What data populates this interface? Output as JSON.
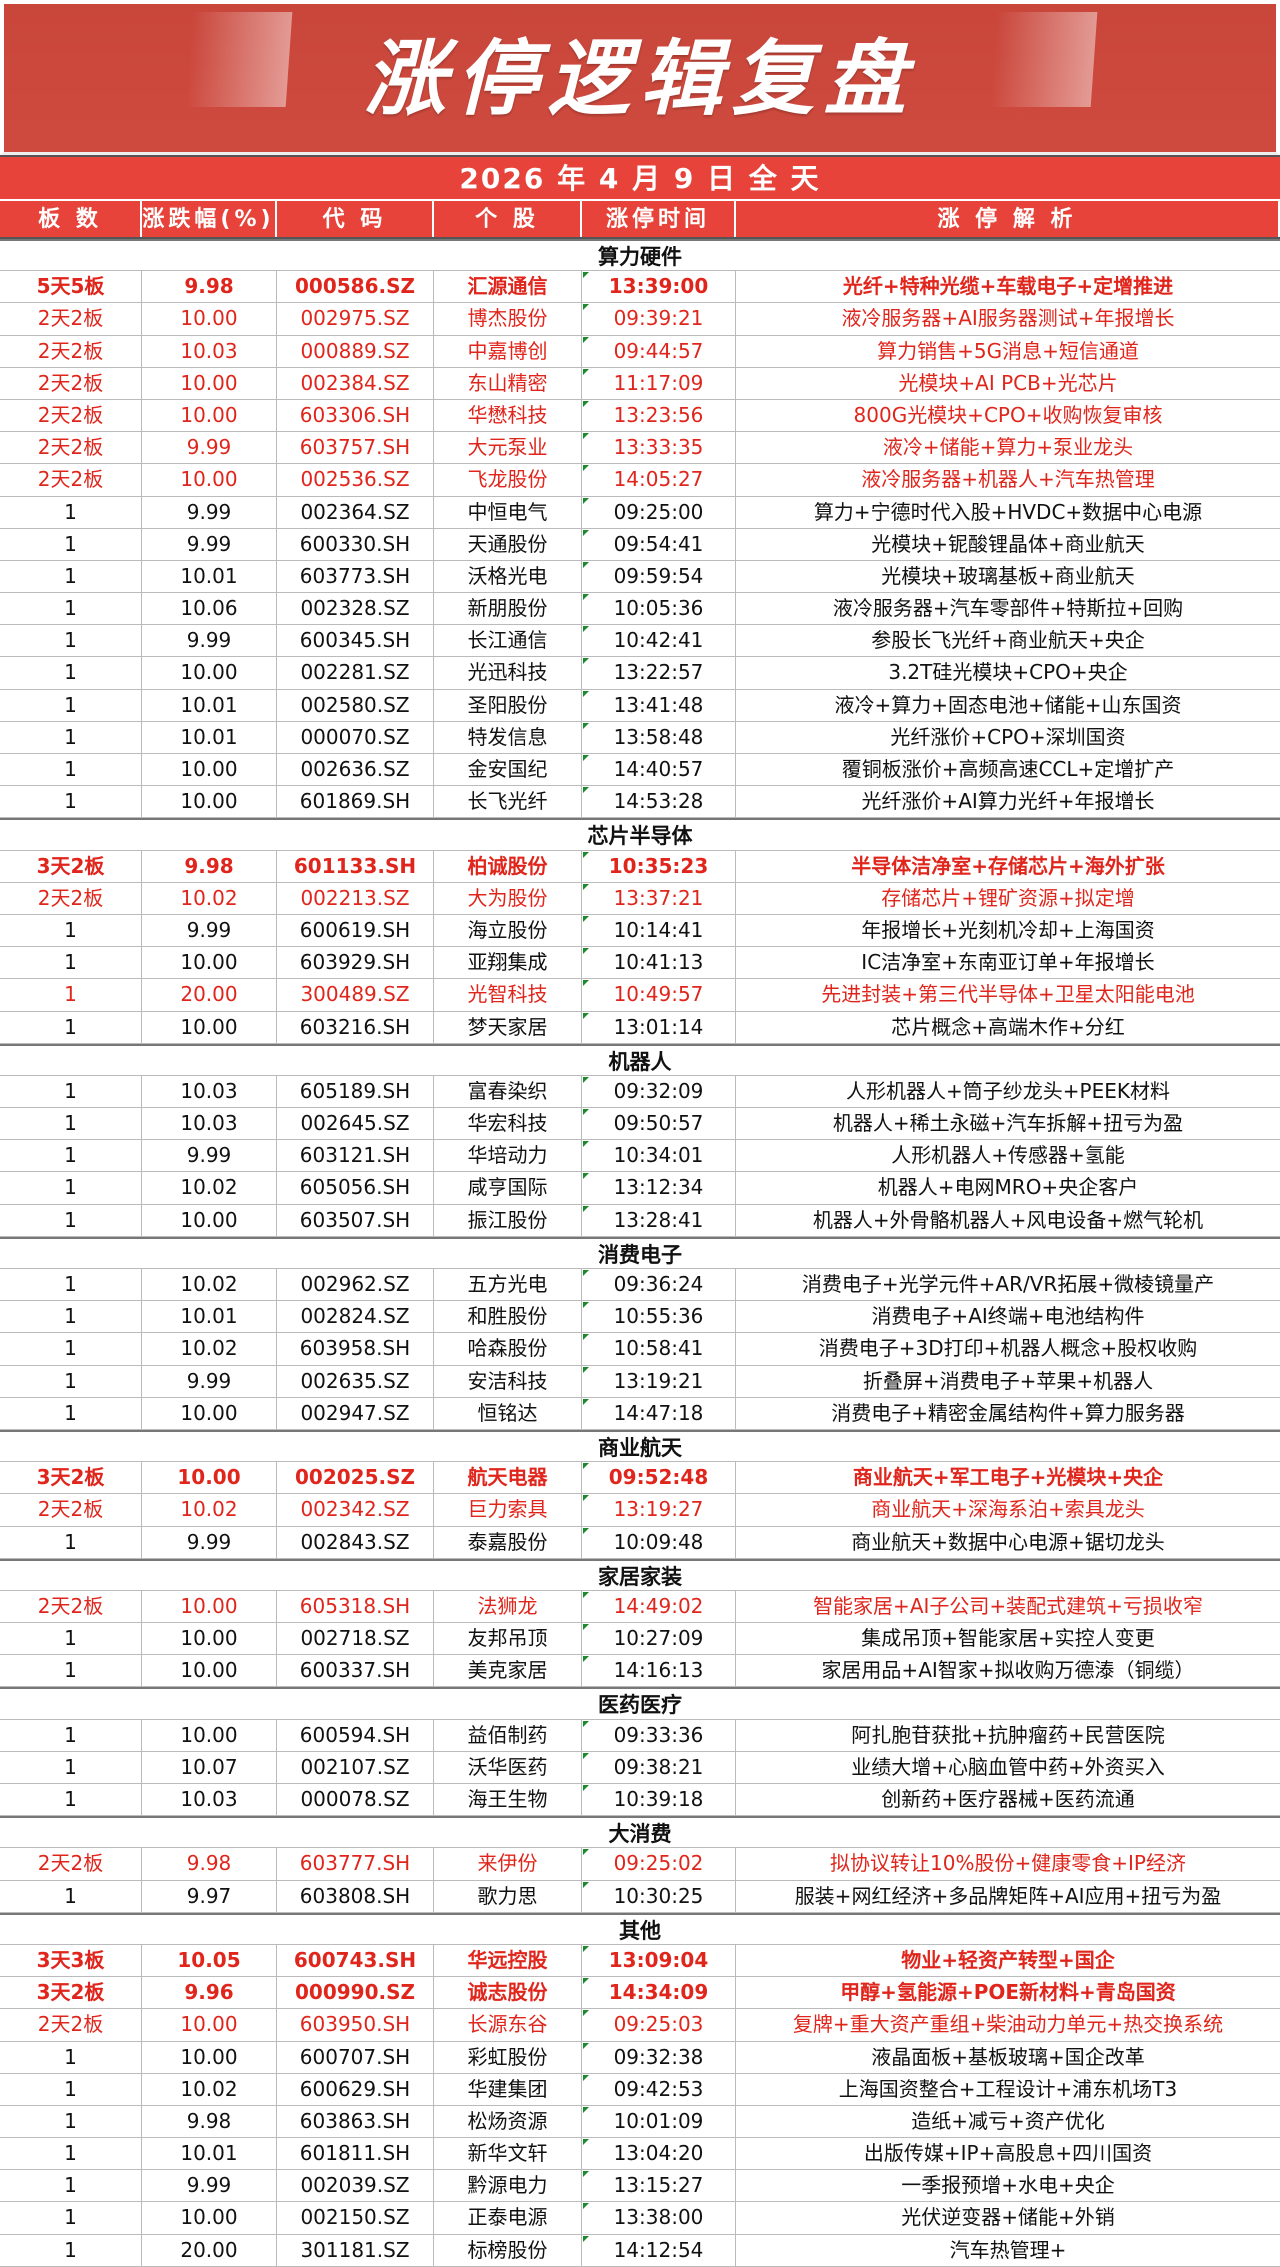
{
  "title": "涨停逻辑复盘",
  "date": "2026 年 4 月 9 日 全 天",
  "headers": [
    "板 数",
    "涨跌幅(%)",
    "代 码",
    "个 股",
    "涨停时间",
    "涨 停 解 析"
  ],
  "colors": {
    "accent": "#e8433a",
    "highlight_text": "#e0261c",
    "banner": "#cf4a3e"
  },
  "sections": [
    {
      "name": "算力硬件",
      "rows": [
        {
          "b": "5天5板",
          "p": "9.98",
          "c": "000586.SZ",
          "n": "汇源通信",
          "t": "13:39:00",
          "r": "光纤+特种光缆+车载电子+定增推进",
          "s": "bold"
        },
        {
          "b": "2天2板",
          "p": "10.00",
          "c": "002975.SZ",
          "n": "博杰股份",
          "t": "09:39:21",
          "r": "液冷服务器+AI服务器测试+年报增长",
          "s": "red"
        },
        {
          "b": "2天2板",
          "p": "10.03",
          "c": "000889.SZ",
          "n": "中嘉博创",
          "t": "09:44:57",
          "r": "算力销售+5G消息+短信通道",
          "s": "red"
        },
        {
          "b": "2天2板",
          "p": "10.00",
          "c": "002384.SZ",
          "n": "东山精密",
          "t": "11:17:09",
          "r": "光模块+AI PCB+光芯片",
          "s": "red"
        },
        {
          "b": "2天2板",
          "p": "10.00",
          "c": "603306.SH",
          "n": "华懋科技",
          "t": "13:23:56",
          "r": "800G光模块+CPO+收购恢复审核",
          "s": "red"
        },
        {
          "b": "2天2板",
          "p": "9.99",
          "c": "603757.SH",
          "n": "大元泵业",
          "t": "13:33:35",
          "r": "液冷+储能+算力+泵业龙头",
          "s": "red"
        },
        {
          "b": "2天2板",
          "p": "10.00",
          "c": "002536.SZ",
          "n": "飞龙股份",
          "t": "14:05:27",
          "r": "液冷服务器+机器人+汽车热管理",
          "s": "red"
        },
        {
          "b": "1",
          "p": "9.99",
          "c": "002364.SZ",
          "n": "中恒电气",
          "t": "09:25:00",
          "r": "算力+宁德时代入股+HVDC+数据中心电源",
          "s": ""
        },
        {
          "b": "1",
          "p": "9.99",
          "c": "600330.SH",
          "n": "天通股份",
          "t": "09:54:41",
          "r": "光模块+铌酸锂晶体+商业航天",
          "s": ""
        },
        {
          "b": "1",
          "p": "10.01",
          "c": "603773.SH",
          "n": "沃格光电",
          "t": "09:59:54",
          "r": "光模块+玻璃基板+商业航天",
          "s": ""
        },
        {
          "b": "1",
          "p": "10.06",
          "c": "002328.SZ",
          "n": "新朋股份",
          "t": "10:05:36",
          "r": "液冷服务器+汽车零部件+特斯拉+回购",
          "s": ""
        },
        {
          "b": "1",
          "p": "9.99",
          "c": "600345.SH",
          "n": "长江通信",
          "t": "10:42:41",
          "r": "参股长飞光纤+商业航天+央企",
          "s": ""
        },
        {
          "b": "1",
          "p": "10.00",
          "c": "002281.SZ",
          "n": "光迅科技",
          "t": "13:22:57",
          "r": "3.2T硅光模块+CPO+央企",
          "s": ""
        },
        {
          "b": "1",
          "p": "10.01",
          "c": "002580.SZ",
          "n": "圣阳股份",
          "t": "13:41:48",
          "r": "液冷+算力+固态电池+储能+山东国资",
          "s": ""
        },
        {
          "b": "1",
          "p": "10.01",
          "c": "000070.SZ",
          "n": "特发信息",
          "t": "13:58:48",
          "r": "光纤涨价+CPO+深圳国资",
          "s": ""
        },
        {
          "b": "1",
          "p": "10.00",
          "c": "002636.SZ",
          "n": "金安国纪",
          "t": "14:40:57",
          "r": "覆铜板涨价+高频高速CCL+定增扩产",
          "s": ""
        },
        {
          "b": "1",
          "p": "10.00",
          "c": "601869.SH",
          "n": "长飞光纤",
          "t": "14:53:28",
          "r": "光纤涨价+AI算力光纤+年报增长",
          "s": ""
        }
      ]
    },
    {
      "name": "芯片半导体",
      "rows": [
        {
          "b": "3天2板",
          "p": "9.98",
          "c": "601133.SH",
          "n": "柏诚股份",
          "t": "10:35:23",
          "r": "半导体洁净室+存储芯片+海外扩张",
          "s": "bold"
        },
        {
          "b": "2天2板",
          "p": "10.02",
          "c": "002213.SZ",
          "n": "大为股份",
          "t": "13:37:21",
          "r": "存储芯片+锂矿资源+拟定增",
          "s": "red"
        },
        {
          "b": "1",
          "p": "9.99",
          "c": "600619.SH",
          "n": "海立股份",
          "t": "10:14:41",
          "r": "年报增长+光刻机冷却+上海国资",
          "s": ""
        },
        {
          "b": "1",
          "p": "10.00",
          "c": "603929.SH",
          "n": "亚翔集成",
          "t": "10:41:13",
          "r": "IC洁净室+东南亚订单+年报增长",
          "s": ""
        },
        {
          "b": "1",
          "p": "20.00",
          "c": "300489.SZ",
          "n": "光智科技",
          "t": "10:49:57",
          "r": "先进封装+第三代半导体+卫星太阳能电池",
          "s": "red"
        },
        {
          "b": "1",
          "p": "10.00",
          "c": "603216.SH",
          "n": "梦天家居",
          "t": "13:01:14",
          "r": "芯片概念+高端木作+分红",
          "s": ""
        }
      ]
    },
    {
      "name": "机器人",
      "rows": [
        {
          "b": "1",
          "p": "10.03",
          "c": "605189.SH",
          "n": "富春染织",
          "t": "09:32:09",
          "r": "人形机器人+筒子纱龙头+PEEK材料",
          "s": ""
        },
        {
          "b": "1",
          "p": "10.03",
          "c": "002645.SZ",
          "n": "华宏科技",
          "t": "09:50:57",
          "r": "机器人+稀土永磁+汽车拆解+扭亏为盈",
          "s": ""
        },
        {
          "b": "1",
          "p": "9.99",
          "c": "603121.SH",
          "n": "华培动力",
          "t": "10:34:01",
          "r": "人形机器人+传感器+氢能",
          "s": ""
        },
        {
          "b": "1",
          "p": "10.02",
          "c": "605056.SH",
          "n": "咸亨国际",
          "t": "13:12:34",
          "r": "机器人+电网MRO+央企客户",
          "s": ""
        },
        {
          "b": "1",
          "p": "10.00",
          "c": "603507.SH",
          "n": "振江股份",
          "t": "13:28:41",
          "r": "机器人+外骨骼机器人+风电设备+燃气轮机",
          "s": ""
        }
      ]
    },
    {
      "name": "消费电子",
      "rows": [
        {
          "b": "1",
          "p": "10.02",
          "c": "002962.SZ",
          "n": "五方光电",
          "t": "09:36:24",
          "r": "消费电子+光学元件+AR/VR拓展+微棱镜量产",
          "s": ""
        },
        {
          "b": "1",
          "p": "10.01",
          "c": "002824.SZ",
          "n": "和胜股份",
          "t": "10:55:36",
          "r": "消费电子+AI终端+电池结构件",
          "s": ""
        },
        {
          "b": "1",
          "p": "10.02",
          "c": "603958.SH",
          "n": "哈森股份",
          "t": "10:58:41",
          "r": "消费电子+3D打印+机器人概念+股权收购",
          "s": ""
        },
        {
          "b": "1",
          "p": "9.99",
          "c": "002635.SZ",
          "n": "安洁科技",
          "t": "13:19:21",
          "r": "折叠屏+消费电子+苹果+机器人",
          "s": ""
        },
        {
          "b": "1",
          "p": "10.00",
          "c": "002947.SZ",
          "n": "恒铭达",
          "t": "14:47:18",
          "r": "消费电子+精密金属结构件+算力服务器",
          "s": ""
        }
      ]
    },
    {
      "name": "商业航天",
      "rows": [
        {
          "b": "3天2板",
          "p": "10.00",
          "c": "002025.SZ",
          "n": "航天电器",
          "t": "09:52:48",
          "r": "商业航天+军工电子+光模块+央企",
          "s": "bold"
        },
        {
          "b": "2天2板",
          "p": "10.02",
          "c": "002342.SZ",
          "n": "巨力索具",
          "t": "13:19:27",
          "r": "商业航天+深海系泊+索具龙头",
          "s": "red"
        },
        {
          "b": "1",
          "p": "9.99",
          "c": "002843.SZ",
          "n": "泰嘉股份",
          "t": "10:09:48",
          "r": "商业航天+数据中心电源+锯切龙头",
          "s": ""
        }
      ]
    },
    {
      "name": "家居家装",
      "rows": [
        {
          "b": "2天2板",
          "p": "10.00",
          "c": "605318.SH",
          "n": "法狮龙",
          "t": "14:49:02",
          "r": "智能家居+AI子公司+装配式建筑+亏损收窄",
          "s": "red"
        },
        {
          "b": "1",
          "p": "10.00",
          "c": "002718.SZ",
          "n": "友邦吊顶",
          "t": "10:27:09",
          "r": "集成吊顶+智能家居+实控人变更",
          "s": ""
        },
        {
          "b": "1",
          "p": "10.00",
          "c": "600337.SH",
          "n": "美克家居",
          "t": "14:16:13",
          "r": "家居用品+AI智家+拟收购万德溙（铜缆）",
          "s": ""
        }
      ]
    },
    {
      "name": "医药医疗",
      "rows": [
        {
          "b": "1",
          "p": "10.00",
          "c": "600594.SH",
          "n": "益佰制药",
          "t": "09:33:36",
          "r": "阿扎胞苷获批+抗肿瘤药+民营医院",
          "s": ""
        },
        {
          "b": "1",
          "p": "10.07",
          "c": "002107.SZ",
          "n": "沃华医药",
          "t": "09:38:21",
          "r": "业绩大增+心脑血管中药+外资买入",
          "s": ""
        },
        {
          "b": "1",
          "p": "10.03",
          "c": "000078.SZ",
          "n": "海王生物",
          "t": "10:39:18",
          "r": "创新药+医疗器械+医药流通",
          "s": ""
        }
      ]
    },
    {
      "name": "大消费",
      "rows": [
        {
          "b": "2天2板",
          "p": "9.98",
          "c": "603777.SH",
          "n": "来伊份",
          "t": "09:25:02",
          "r": "拟协议转让10%股份+健康零食+IP经济",
          "s": "red"
        },
        {
          "b": "1",
          "p": "9.97",
          "c": "603808.SH",
          "n": "歌力思",
          "t": "10:30:25",
          "r": "服装+网红经济+多品牌矩阵+AI应用+扭亏为盈",
          "s": ""
        }
      ]
    },
    {
      "name": "其他",
      "rows": [
        {
          "b": "3天3板",
          "p": "10.05",
          "c": "600743.SH",
          "n": "华远控股",
          "t": "13:09:04",
          "r": "物业+轻资产转型+国企",
          "s": "bold"
        },
        {
          "b": "3天2板",
          "p": "9.96",
          "c": "000990.SZ",
          "n": "诚志股份",
          "t": "14:34:09",
          "r": "甲醇+氢能源+POE新材料+青岛国资",
          "s": "bold"
        },
        {
          "b": "2天2板",
          "p": "10.00",
          "c": "603950.SH",
          "n": "长源东谷",
          "t": "09:25:03",
          "r": "复牌+重大资产重组+柴油动力单元+热交换系统",
          "s": "red"
        },
        {
          "b": "1",
          "p": "10.00",
          "c": "600707.SH",
          "n": "彩虹股份",
          "t": "09:32:38",
          "r": "液晶面板+基板玻璃+国企改革",
          "s": ""
        },
        {
          "b": "1",
          "p": "10.02",
          "c": "600629.SH",
          "n": "华建集团",
          "t": "09:42:53",
          "r": "上海国资整合+工程设计+浦东机场T3",
          "s": ""
        },
        {
          "b": "1",
          "p": "9.98",
          "c": "603863.SH",
          "n": "松炀资源",
          "t": "10:01:09",
          "r": "造纸+减亏+资产优化",
          "s": ""
        },
        {
          "b": "1",
          "p": "10.01",
          "c": "601811.SH",
          "n": "新华文轩",
          "t": "13:04:20",
          "r": "出版传媒+IP+高股息+四川国资",
          "s": ""
        },
        {
          "b": "1",
          "p": "9.99",
          "c": "002039.SZ",
          "n": "黔源电力",
          "t": "13:15:27",
          "r": "一季报预增+水电+央企",
          "s": ""
        },
        {
          "b": "1",
          "p": "10.00",
          "c": "002150.SZ",
          "n": "正泰电源",
          "t": "13:38:00",
          "r": "光伏逆变器+储能+外销",
          "s": ""
        },
        {
          "b": "1",
          "p": "20.00",
          "c": "301181.SZ",
          "n": "标榜股份",
          "t": "14:12:54",
          "r": "汽车热管理+",
          "s": ""
        }
      ]
    }
  ]
}
